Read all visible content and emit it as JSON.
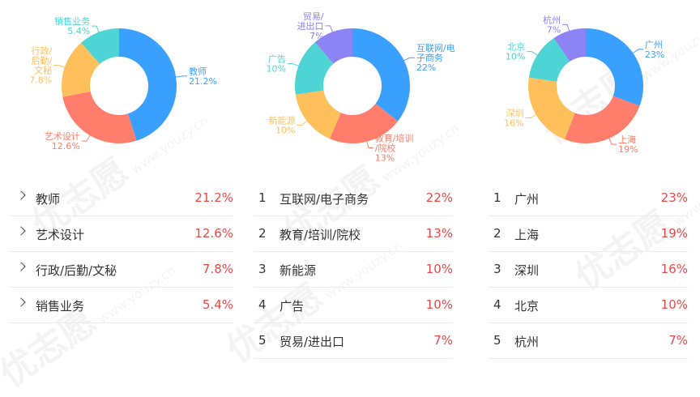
{
  "watermark": "优志愿",
  "watermark_url": "www.youzy.cn",
  "chart_data": [
    {
      "type": "pie",
      "donut": true,
      "slices": [
        {
          "label": "教师",
          "value": 21.2,
          "value_text": "21.2%",
          "color": "#3aa0ff"
        },
        {
          "label": "艺术设计",
          "value": 12.6,
          "value_text": "12.6%",
          "color": "#ff7d6a"
        },
        {
          "label": "行政/后勤/文秘",
          "value": 7.8,
          "value_text": "7.8%",
          "color": "#ffc05c"
        },
        {
          "label": "销售业务",
          "value": 5.4,
          "value_text": "5.4%",
          "color": "#4ed4d4"
        }
      ]
    },
    {
      "type": "pie",
      "donut": true,
      "slices": [
        {
          "label": "互联网/电子商务",
          "value": 22,
          "value_text": "22%",
          "color": "#3aa0ff"
        },
        {
          "label": "教育/培训/院校",
          "value": 13,
          "value_text": "13%",
          "color": "#ff7d6a"
        },
        {
          "label": "新能源",
          "value": 10,
          "value_text": "10%",
          "color": "#ffc05c"
        },
        {
          "label": "广告",
          "value": 10,
          "value_text": "10%",
          "color": "#4ed4d4"
        },
        {
          "label": "贸易/进出口",
          "value": 7,
          "value_text": "7%",
          "color": "#8c84f5"
        }
      ]
    },
    {
      "type": "pie",
      "donut": true,
      "slices": [
        {
          "label": "广州",
          "value": 23,
          "value_text": "23%",
          "color": "#3aa0ff"
        },
        {
          "label": "上海",
          "value": 19,
          "value_text": "19%",
          "color": "#ff7d6a"
        },
        {
          "label": "深圳",
          "value": 16,
          "value_text": "16%",
          "color": "#ffc05c"
        },
        {
          "label": "北京",
          "value": 10,
          "value_text": "10%",
          "color": "#4ed4d4"
        },
        {
          "label": "杭州",
          "value": 7,
          "value_text": "7%",
          "color": "#8c84f5"
        }
      ]
    }
  ],
  "lists": [
    {
      "marker": "chevron",
      "items": [
        {
          "name": "教师",
          "value": "21.2%"
        },
        {
          "name": "艺术设计",
          "value": "12.6%"
        },
        {
          "name": "行政/后勤/文秘",
          "value": "7.8%"
        },
        {
          "name": "销售业务",
          "value": "5.4%"
        }
      ]
    },
    {
      "marker": "number",
      "items": [
        {
          "rank": "1",
          "name": "互联网/电子商务",
          "value": "22%"
        },
        {
          "rank": "2",
          "name": "教育/培训/院校",
          "value": "13%"
        },
        {
          "rank": "3",
          "name": "新能源",
          "value": "10%"
        },
        {
          "rank": "4",
          "name": "广告",
          "value": "10%"
        },
        {
          "rank": "5",
          "name": "贸易/进出口",
          "value": "7%"
        }
      ]
    },
    {
      "marker": "number",
      "items": [
        {
          "rank": "1",
          "name": "广州",
          "value": "23%"
        },
        {
          "rank": "2",
          "name": "上海",
          "value": "19%"
        },
        {
          "rank": "3",
          "name": "深圳",
          "value": "16%"
        },
        {
          "rank": "4",
          "name": "北京",
          "value": "10%"
        },
        {
          "rank": "5",
          "name": "杭州",
          "value": "7%"
        }
      ]
    }
  ]
}
